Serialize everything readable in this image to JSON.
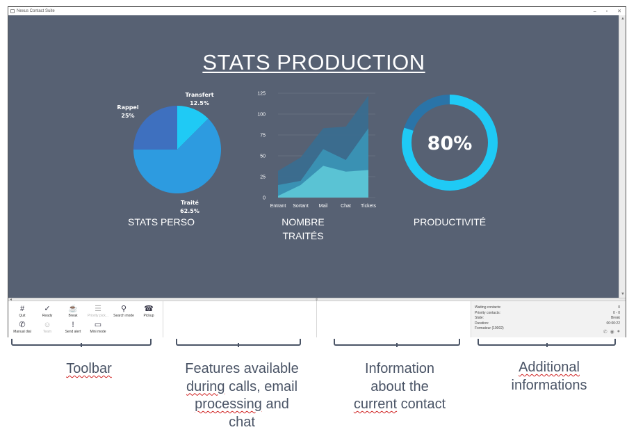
{
  "window": {
    "title": "Nexus Contact Suite",
    "controls": {
      "minimize": "–",
      "maximize": "▫",
      "close": "✕"
    }
  },
  "dashboard": {
    "title": "STATS PRODUCTION",
    "widgets": {
      "stats_perso": "STATS PERSO",
      "nombre_traites_line1": "NOMBRE",
      "nombre_traites_line2": "TRAITÉS",
      "productivite": "PRODUCTIVITÉ"
    }
  },
  "chart_data": [
    {
      "type": "pie",
      "labels": [
        "Transfert",
        "Traité",
        "Rappel"
      ],
      "values": [
        12.5,
        62.5,
        25
      ],
      "value_labels": [
        "12.5%",
        "62.5%",
        "25%"
      ],
      "colors": [
        "#1fcaf5",
        "#2d9be0",
        "#3e70bf"
      ]
    },
    {
      "type": "area",
      "categories": [
        "Entrant",
        "Sortant",
        "Mail",
        "Chat",
        "Tickets"
      ],
      "y_ticks": [
        "0",
        "25",
        "50",
        "75",
        "100",
        "125"
      ],
      "ylim": [
        0,
        125
      ],
      "series": [
        {
          "values": [
            32,
            48,
            83,
            85,
            122
          ],
          "color": "#3a6d8f"
        },
        {
          "values": [
            15,
            20,
            58,
            45,
            83
          ],
          "color": "#3a93b5"
        },
        {
          "values": [
            2,
            15,
            38,
            31,
            33
          ],
          "color": "#5cc6d6"
        }
      ]
    },
    {
      "type": "donut",
      "value": 80,
      "value_label": "80%",
      "colors": {
        "filled": "#1fcaf5",
        "remaining": "#2a74a8"
      }
    }
  ],
  "toolbar": {
    "buttons": [
      {
        "label": "Quit",
        "icon": "quit-icon",
        "glyph": "#",
        "disabled": false
      },
      {
        "label": "Ready",
        "icon": "ready-check-icon",
        "glyph": "✓",
        "disabled": false
      },
      {
        "label": "Break",
        "icon": "break-cup-icon",
        "glyph": "☕",
        "disabled": false
      },
      {
        "label": "Priority pick...",
        "icon": "priority-pick-icon",
        "glyph": "☰",
        "disabled": true
      },
      {
        "label": "Search mode",
        "icon": "search-icon",
        "glyph": "⚲",
        "disabled": false
      },
      {
        "label": "Pickup",
        "icon": "pickup-icon",
        "glyph": "☎",
        "disabled": false
      },
      {
        "label": "Manual dial",
        "icon": "manual-dial-icon",
        "glyph": "✆",
        "disabled": false
      },
      {
        "label": "Team",
        "icon": "team-icon",
        "glyph": "☺",
        "disabled": true
      },
      {
        "label": "Send alert",
        "icon": "alert-icon",
        "glyph": "!",
        "disabled": false
      },
      {
        "label": "Mini mode",
        "icon": "mini-mode-icon",
        "glyph": "▭",
        "disabled": false
      }
    ]
  },
  "info": {
    "rows": [
      {
        "label": "Waiting contacts:",
        "value": "0"
      },
      {
        "label": "Priority contacts:",
        "value": "0 - 0"
      },
      {
        "label": "State:",
        "value": "Break"
      },
      {
        "label": "Duration:",
        "value": "00:00:22"
      },
      {
        "label": "Formateur (10002)",
        "value": ""
      }
    ],
    "icons": [
      "phone-icon",
      "mail-icon",
      "chat-icon"
    ]
  },
  "annotations": {
    "toolbar": "Toolbar",
    "features_l1": "Features available",
    "features_l2a": "during",
    "features_l2b": " calls, email",
    "features_l3a": "processing",
    "features_l3b": " and",
    "features_l4": "chat",
    "info_l1": "Information",
    "info_l2": "about the",
    "info_l3a": "current",
    "info_l3b": " contact",
    "additional_l1": "Additional",
    "additional_l2": "informations"
  }
}
